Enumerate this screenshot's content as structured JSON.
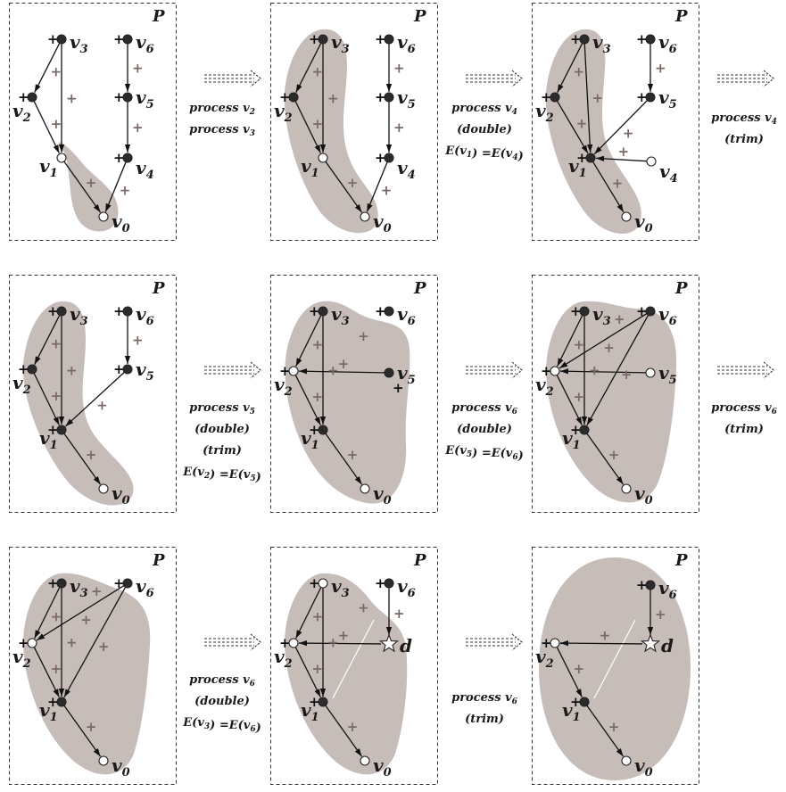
{
  "frame_label": "P",
  "sign_plus": "+",
  "vertex_names": {
    "v0": {
      "base": "v",
      "sub": "0"
    },
    "v1": {
      "base": "v",
      "sub": "1"
    },
    "v2": {
      "base": "v",
      "sub": "2"
    },
    "v3": {
      "base": "v",
      "sub": "3"
    },
    "v4": {
      "base": "v",
      "sub": "4"
    },
    "v5": {
      "base": "v",
      "sub": "5"
    },
    "v6": {
      "base": "v",
      "sub": "6"
    },
    "d": {
      "base": "d",
      "sub": ""
    }
  },
  "transitions": [
    {
      "lines": [
        [
          [
            "process v",
            ""
          ],
          [
            "2",
            "sub"
          ]
        ],
        [
          [
            "process v",
            ""
          ],
          [
            "3",
            "sub"
          ]
        ]
      ]
    },
    {
      "lines": [
        [
          [
            "process v",
            ""
          ],
          [
            "4",
            "sub"
          ]
        ],
        [
          [
            "(double)",
            ""
          ]
        ],
        [
          [
            "E(v",
            ""
          ],
          [
            "1",
            "sub"
          ],
          [
            ") =E(v",
            ""
          ],
          [
            "4",
            "sub"
          ],
          [
            ")",
            ""
          ]
        ]
      ]
    },
    {
      "lines": [
        [
          [
            "process v",
            ""
          ],
          [
            "4",
            "sub"
          ]
        ],
        [
          [
            "(trim)",
            ""
          ]
        ]
      ]
    },
    {
      "lines": [
        [
          [
            "process v",
            ""
          ],
          [
            "5",
            "sub"
          ]
        ],
        [
          [
            "(double)",
            ""
          ]
        ],
        [
          [
            "(trim)",
            ""
          ]
        ],
        [
          [
            "E(v",
            ""
          ],
          [
            "2",
            "sub"
          ],
          [
            ") =E(v",
            ""
          ],
          [
            "5",
            "sub"
          ],
          [
            ")",
            ""
          ]
        ]
      ]
    },
    {
      "lines": [
        [
          [
            "process v",
            ""
          ],
          [
            "6",
            "sub"
          ]
        ],
        [
          [
            "(double)",
            ""
          ]
        ],
        [
          [
            "E(v",
            ""
          ],
          [
            "5",
            "sub"
          ],
          [
            ") =E(v",
            ""
          ],
          [
            "6",
            "sub"
          ],
          [
            ")",
            ""
          ]
        ]
      ]
    },
    {
      "lines": [
        [
          [
            "process v",
            ""
          ],
          [
            "6",
            "sub"
          ]
        ],
        [
          [
            "(trim)",
            ""
          ]
        ]
      ]
    },
    {
      "lines": [
        [
          [
            "process v",
            ""
          ],
          [
            "6",
            "sub"
          ]
        ],
        [
          [
            "(double)",
            ""
          ]
        ],
        [
          [
            "E(v",
            ""
          ],
          [
            "3",
            "sub"
          ],
          [
            ") =E(v",
            ""
          ],
          [
            "6",
            "sub"
          ],
          [
            ")",
            ""
          ]
        ]
      ]
    },
    {
      "lines": [
        [
          [
            "process v",
            ""
          ],
          [
            "6",
            "sub"
          ]
        ],
        [
          [
            "(trim)",
            ""
          ]
        ]
      ]
    }
  ],
  "panels": [
    {
      "nodes": {
        "v3": "black",
        "v6": "black",
        "v2": "black",
        "v5": "black",
        "v1": "white",
        "v4": "black",
        "v0": "white"
      },
      "edges": [
        [
          "v3",
          "v2"
        ],
        [
          "v3",
          "v1"
        ],
        [
          "v6",
          "v5"
        ],
        [
          "v5",
          "v4"
        ],
        [
          "v2",
          "v1"
        ],
        [
          "v1",
          "v0"
        ],
        [
          "v4",
          "v0"
        ]
      ],
      "black_signs": [
        "v3",
        "v6",
        "v2",
        "v5",
        "v4"
      ],
      "gray_signs": [
        [
          "v3",
          "v2"
        ],
        [
          "v3",
          "v1"
        ],
        [
          "v6",
          "v5"
        ],
        [
          "v5",
          "v4"
        ],
        [
          "v2",
          "v1"
        ],
        [
          "v1",
          "v0"
        ],
        [
          "v4",
          "v0"
        ]
      ],
      "region": "p1"
    },
    {
      "nodes": {
        "v3": "black",
        "v6": "black",
        "v2": "black",
        "v5": "black",
        "v1": "white",
        "v4": "black",
        "v0": "white"
      },
      "edges": [
        [
          "v3",
          "v2"
        ],
        [
          "v3",
          "v1"
        ],
        [
          "v6",
          "v5"
        ],
        [
          "v5",
          "v4"
        ],
        [
          "v2",
          "v1"
        ],
        [
          "v1",
          "v0"
        ],
        [
          "v4",
          "v0"
        ]
      ],
      "black_signs": [
        "v3",
        "v6",
        "v2",
        "v5",
        "v4"
      ],
      "gray_signs": [
        [
          "v3",
          "v2"
        ],
        [
          "v3",
          "v1"
        ],
        [
          "v6",
          "v5"
        ],
        [
          "v5",
          "v4"
        ],
        [
          "v2",
          "v1"
        ],
        [
          "v1",
          "v0"
        ],
        [
          "v4",
          "v0"
        ]
      ],
      "region": "p2"
    },
    {
      "nodes": {
        "v3": "black",
        "v6": "black",
        "v2": "black",
        "v5": "black",
        "v1": "black",
        "v4": "white",
        "v0": "white"
      },
      "edges": [
        [
          "v3",
          "v2"
        ],
        [
          "v3",
          "v1"
        ],
        [
          "v6",
          "v5"
        ],
        [
          "v5",
          "v1"
        ],
        [
          "v2",
          "v1"
        ],
        [
          "v4",
          "v1"
        ],
        [
          "v1",
          "v0"
        ]
      ],
      "black_signs": [
        "v3",
        "v6",
        "v2",
        "v5",
        "v1"
      ],
      "gray_signs": [
        [
          "v3",
          "v2"
        ],
        [
          "v3",
          "v1"
        ],
        [
          "v6",
          "v5"
        ],
        [
          "v5",
          "v1"
        ],
        [
          "v2",
          "v1"
        ],
        [
          "v4",
          "v1"
        ],
        [
          "v1",
          "v0"
        ]
      ],
      "region": "p3"
    },
    {
      "nodes": {
        "v3": "black",
        "v6": "black",
        "v2": "black",
        "v5": "black",
        "v1": "black",
        "v0": "white"
      },
      "edges": [
        [
          "v3",
          "v2"
        ],
        [
          "v3",
          "v1"
        ],
        [
          "v6",
          "v5"
        ],
        [
          "v5",
          "v1"
        ],
        [
          "v2",
          "v1"
        ],
        [
          "v1",
          "v0"
        ]
      ],
      "black_signs": [
        "v3",
        "v6",
        "v2",
        "v5",
        "v1"
      ],
      "gray_signs": [
        [
          "v3",
          "v2"
        ],
        [
          "v3",
          "v1"
        ],
        [
          "v6",
          "v5"
        ],
        [
          "v5",
          "v1"
        ],
        [
          "v2",
          "v1"
        ],
        [
          "v1",
          "v0"
        ]
      ],
      "region": "p4"
    },
    {
      "nodes": {
        "v3": "black",
        "v6": "black",
        "v2": "white",
        "v5": "black",
        "v1": "black",
        "v0": "white"
      },
      "edges": [
        [
          "v3",
          "v2"
        ],
        [
          "v3",
          "v1"
        ],
        [
          "v5",
          "v2"
        ],
        [
          "v2",
          "v1"
        ],
        [
          "v1",
          "v0"
        ]
      ],
      "black_signs": [
        "v3",
        "v6",
        "v2",
        "v5b",
        "v1"
      ],
      "gray_signs": [
        [
          "v3",
          "v2"
        ],
        [
          "v3",
          "v1"
        ],
        [
          "v5",
          "v2"
        ],
        [
          "v2",
          "v1"
        ],
        [
          "v1",
          "v0"
        ],
        [
          "v3",
          "v5"
        ]
      ],
      "region": "p5"
    },
    {
      "nodes": {
        "v3": "black",
        "v6": "black",
        "v2": "white",
        "v5": "white",
        "v1": "black",
        "v0": "white"
      },
      "edges": [
        [
          "v3",
          "v2"
        ],
        [
          "v3",
          "v1"
        ],
        [
          "v6",
          "v2"
        ],
        [
          "v6",
          "v1"
        ],
        [
          "v5",
          "v2"
        ],
        [
          "v2",
          "v1"
        ],
        [
          "v1",
          "v0"
        ]
      ],
      "black_signs": [
        "v3",
        "v6",
        "v2",
        "v1"
      ],
      "gray_signs": [
        [
          "v3",
          "v2"
        ],
        [
          "v3",
          "v1"
        ],
        [
          "v6",
          "v2"
        ],
        [
          "v6",
          "v1"
        ],
        [
          "v2",
          "v1"
        ],
        [
          "v1",
          "v0"
        ],
        [
          "v3",
          "v6"
        ]
      ],
      "region": "p6"
    },
    {
      "nodes": {
        "v3": "black",
        "v6": "black",
        "v2": "white",
        "v1": "black",
        "v0": "white"
      },
      "edges": [
        [
          "v3",
          "v2"
        ],
        [
          "v3",
          "v1"
        ],
        [
          "v6",
          "v2"
        ],
        [
          "v6",
          "v1"
        ],
        [
          "v2",
          "v1"
        ],
        [
          "v1",
          "v0"
        ]
      ],
      "black_signs": [
        "v3",
        "v6",
        "v2",
        "v1"
      ],
      "gray_signs": [
        [
          "v3",
          "v2"
        ],
        [
          "v3",
          "v1"
        ],
        [
          "v6",
          "v2"
        ],
        [
          "v6",
          "v1"
        ],
        [
          "v2",
          "v1"
        ],
        [
          "v1",
          "v0"
        ],
        [
          "v3",
          "v6"
        ]
      ],
      "region": "p7"
    },
    {
      "nodes": {
        "v3": "white",
        "v6": "black",
        "v2": "white",
        "d": "star",
        "v1": "black",
        "v0": "white"
      },
      "edges": [
        [
          "v3",
          "v2"
        ],
        [
          "v3",
          "v1"
        ],
        [
          "v6",
          "d"
        ],
        [
          "d",
          "v2"
        ],
        [
          "v2",
          "v1"
        ],
        [
          "v1",
          "v0"
        ]
      ],
      "black_signs": [
        "v3",
        "v6",
        "v2",
        "v1"
      ],
      "gray_signs": [
        [
          "v3",
          "v2"
        ],
        [
          "v3",
          "v1"
        ],
        [
          "v6",
          "d"
        ],
        [
          "d",
          "v2"
        ],
        [
          "v2",
          "v1"
        ],
        [
          "v1",
          "v0"
        ],
        [
          "v3",
          "d"
        ]
      ],
      "white_line": true,
      "region": "p8"
    },
    {
      "nodes": {
        "v6": "black",
        "v2": "white",
        "d": "star",
        "v1": "black",
        "v0": "white"
      },
      "edges": [
        [
          "v6",
          "d"
        ],
        [
          "d",
          "v2"
        ],
        [
          "v2",
          "v1"
        ],
        [
          "v1",
          "v0"
        ]
      ],
      "black_signs": [
        "v6",
        "v2",
        "v1"
      ],
      "gray_signs": [
        [
          "v6",
          "d"
        ],
        [
          "d",
          "v2"
        ],
        [
          "v2",
          "v1"
        ],
        [
          "v1",
          "v0"
        ]
      ],
      "white_line": true,
      "region": "p9"
    }
  ]
}
